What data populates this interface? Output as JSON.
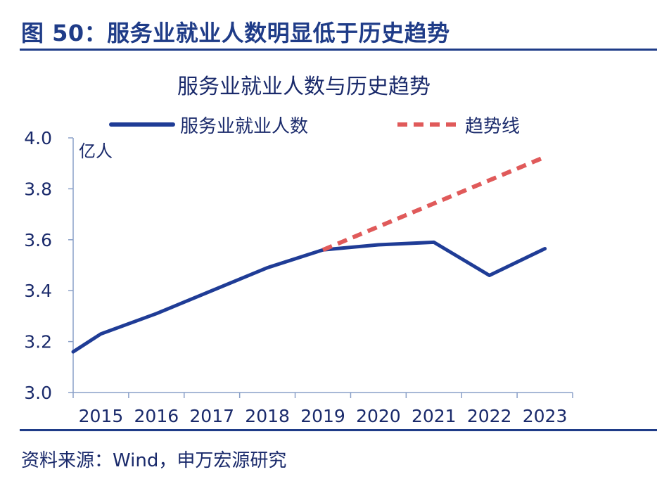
{
  "figure": {
    "title": "图 50：服务业就业人数明显低于历史趋势",
    "source": "资料来源：Wind，申万宏源研究"
  },
  "colors": {
    "brand": "#1f3c88",
    "series_main": "#1f3c96",
    "series_trend": "#e05a5a",
    "axis": "#8aa0c8"
  },
  "chart_data": {
    "type": "line",
    "title": "服务业就业人数与历史趋势",
    "ylabel": "亿人",
    "xlabel": "",
    "ylim": [
      3.0,
      4.0
    ],
    "yticks": [
      "3.0",
      "3.2",
      "3.4",
      "3.6",
      "3.8",
      "4.0"
    ],
    "categories": [
      "2015",
      "2016",
      "2017",
      "2018",
      "2019",
      "2020",
      "2021",
      "2022",
      "2023"
    ],
    "legend_position": "top",
    "grid": false,
    "series": [
      {
        "name": "服务业就业人数",
        "style": "solid",
        "points": [
          {
            "x": 2014.5,
            "y": 3.16
          },
          {
            "x": 2015.0,
            "y": 3.23
          },
          {
            "x": 2016.0,
            "y": 3.31
          },
          {
            "x": 2017.0,
            "y": 3.4
          },
          {
            "x": 2018.0,
            "y": 3.49
          },
          {
            "x": 2019.0,
            "y": 3.56
          },
          {
            "x": 2020.0,
            "y": 3.58
          },
          {
            "x": 2021.0,
            "y": 3.59
          },
          {
            "x": 2022.0,
            "y": 3.46
          },
          {
            "x": 2023.0,
            "y": 3.565
          }
        ]
      },
      {
        "name": "趋势线",
        "style": "dashed",
        "points": [
          {
            "x": 2019.0,
            "y": 3.56
          },
          {
            "x": 2023.0,
            "y": 3.925
          }
        ]
      }
    ]
  }
}
